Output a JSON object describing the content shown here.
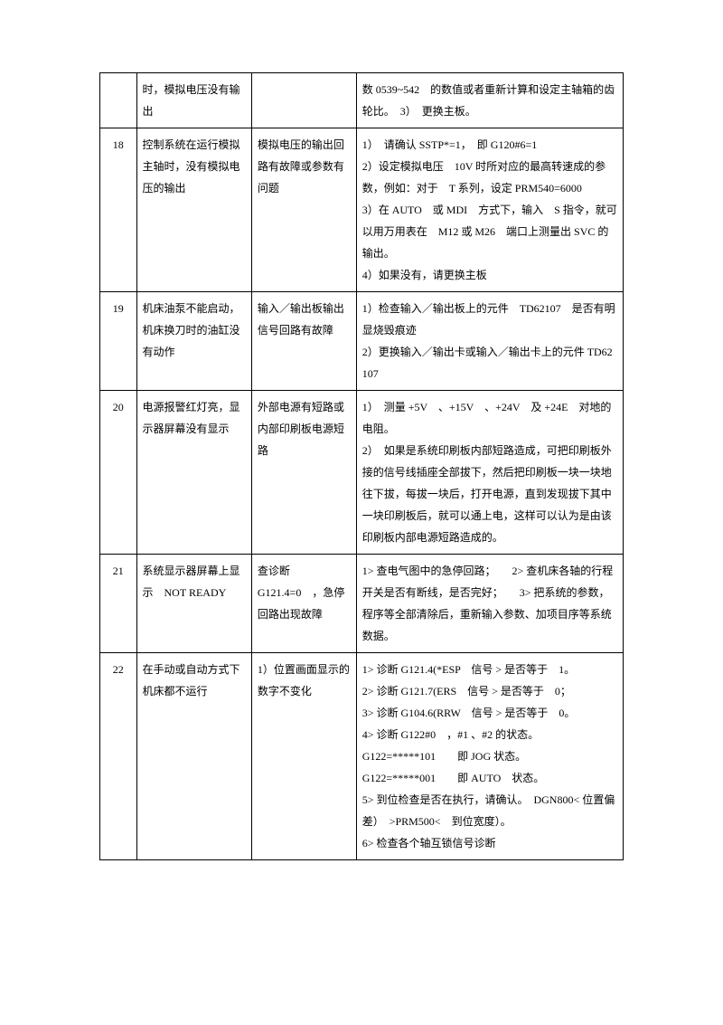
{
  "rows": [
    {
      "n": "",
      "c1": "时，模拟电压没有输出",
      "c2": "",
      "c3": "数 0539~542　的数值或者重新计算和设定主轴箱的齿轮比。　3）　更换主板。"
    },
    {
      "n": "18",
      "c1": "控制系统在运行模拟主轴时，没有模拟电压的输出",
      "c2": "模拟电压的输出回路有故障或参数有问题",
      "c3": "1）　请确认 SSTP*=1，　即 G120#6=1\n2）设定模拟电压　10V 时所对应的最高转速成的参数，例如：对于　T 系列，设定 PRM540=6000\n3）在 AUTO　或 MDI　方式下，输入　S 指令，就可以用万用表在　M12 或 M26　端口上测量出 SVC 的输出。\n4）如果没有，请更换主板"
    },
    {
      "n": "19",
      "c1": "机床油泵不能启动，机床换刀时的油缸没有动作",
      "c2": "输入／输出板输出信号回路有故障",
      "c3": "1）检查输入／输出板上的元件　TD62107　是否有明显烧毁痕迹\n2）更换输入／输出卡或输入／输出卡上的元件 TD62107"
    },
    {
      "n": "20",
      "c1": "电源报警红灯亮，显示器屏幕没有显示",
      "c2": "外部电源有短路或内部印刷板电源短路",
      "c3": "1）　测量 +5V　、+15V　、+24V　及 +24E　对地的电阻。\n2）　如果是系统印刷板内部短路造成，可把印刷板外接的信号线插座全部拔下，然后把印刷板一块一块地往下拔，每拔一块后，打开电源，直到发现拔下其中一块印刷板后，就可以通上电，这样可以认为是由该印刷板内部电源短路造成的。"
    },
    {
      "n": "21",
      "c1": "系统显示器屏幕上显示　NOT READY",
      "c2": "查诊断\nG121.4=0　，急停回路出现故障",
      "c3": "1> 查电气图中的急停回路；　　2> 查机床各轴的行程开关是否有断线，是否完好；　　3> 把系统的参数，程序等全部清除后，重新输入参数、加项目序等系统数据。"
    },
    {
      "n": "22",
      "c1": "在手动或自动方式下机床都不运行",
      "c2": "1）位置画面显示的数字不变化",
      "c3": "1> 诊断 G121.4(*ESP　信号 > 是否等于　1。\n2> 诊断 G121.7(ERS　信号 > 是否等于　0；\n3> 诊断 G104.6(RRW　信号 > 是否等于　0。\n4> 诊断 G122#0　，#1 、#2 的状态。\nG122=*****101　　即 JOG 状态。\nG122=*****001　　即 AUTO　状态。\n5> 到位检查是否在执行，请确认。　DGN800< 位置偏差）　>PRM500<　到位宽度）。\n6> 检查各个轴互锁信号诊断"
    }
  ]
}
